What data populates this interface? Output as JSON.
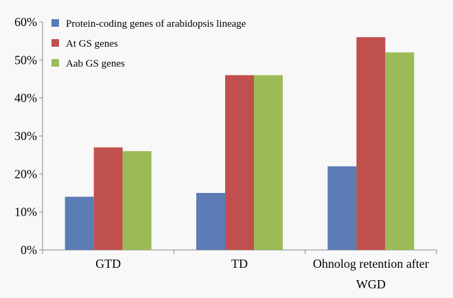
{
  "chart_data": {
    "type": "bar",
    "title": "",
    "xlabel": "",
    "ylabel": "",
    "ylim": [
      0,
      60
    ],
    "y_ticks": [
      "0%",
      "10%",
      "20%",
      "30%",
      "40%",
      "50%",
      "60%"
    ],
    "y_tick_values": [
      0,
      10,
      20,
      30,
      40,
      50,
      60
    ],
    "categories": [
      "GTD",
      "TD",
      "Ohnolog retention after WGD"
    ],
    "category_lines": [
      [
        "GTD"
      ],
      [
        "TD"
      ],
      [
        "Ohnolog retention after",
        "WGD"
      ]
    ],
    "series": [
      {
        "name": "Protein-coding genes of arabidopsis lineage",
        "values": [
          14,
          15,
          22
        ],
        "color": "#5b7cb5"
      },
      {
        "name": "At GS genes",
        "values": [
          27,
          46,
          56
        ],
        "color": "#c0504d"
      },
      {
        "name": "Aab GS genes",
        "values": [
          26,
          46,
          52
        ],
        "color": "#9bbb59"
      }
    ],
    "legend_position": "top-left",
    "grid": false
  }
}
